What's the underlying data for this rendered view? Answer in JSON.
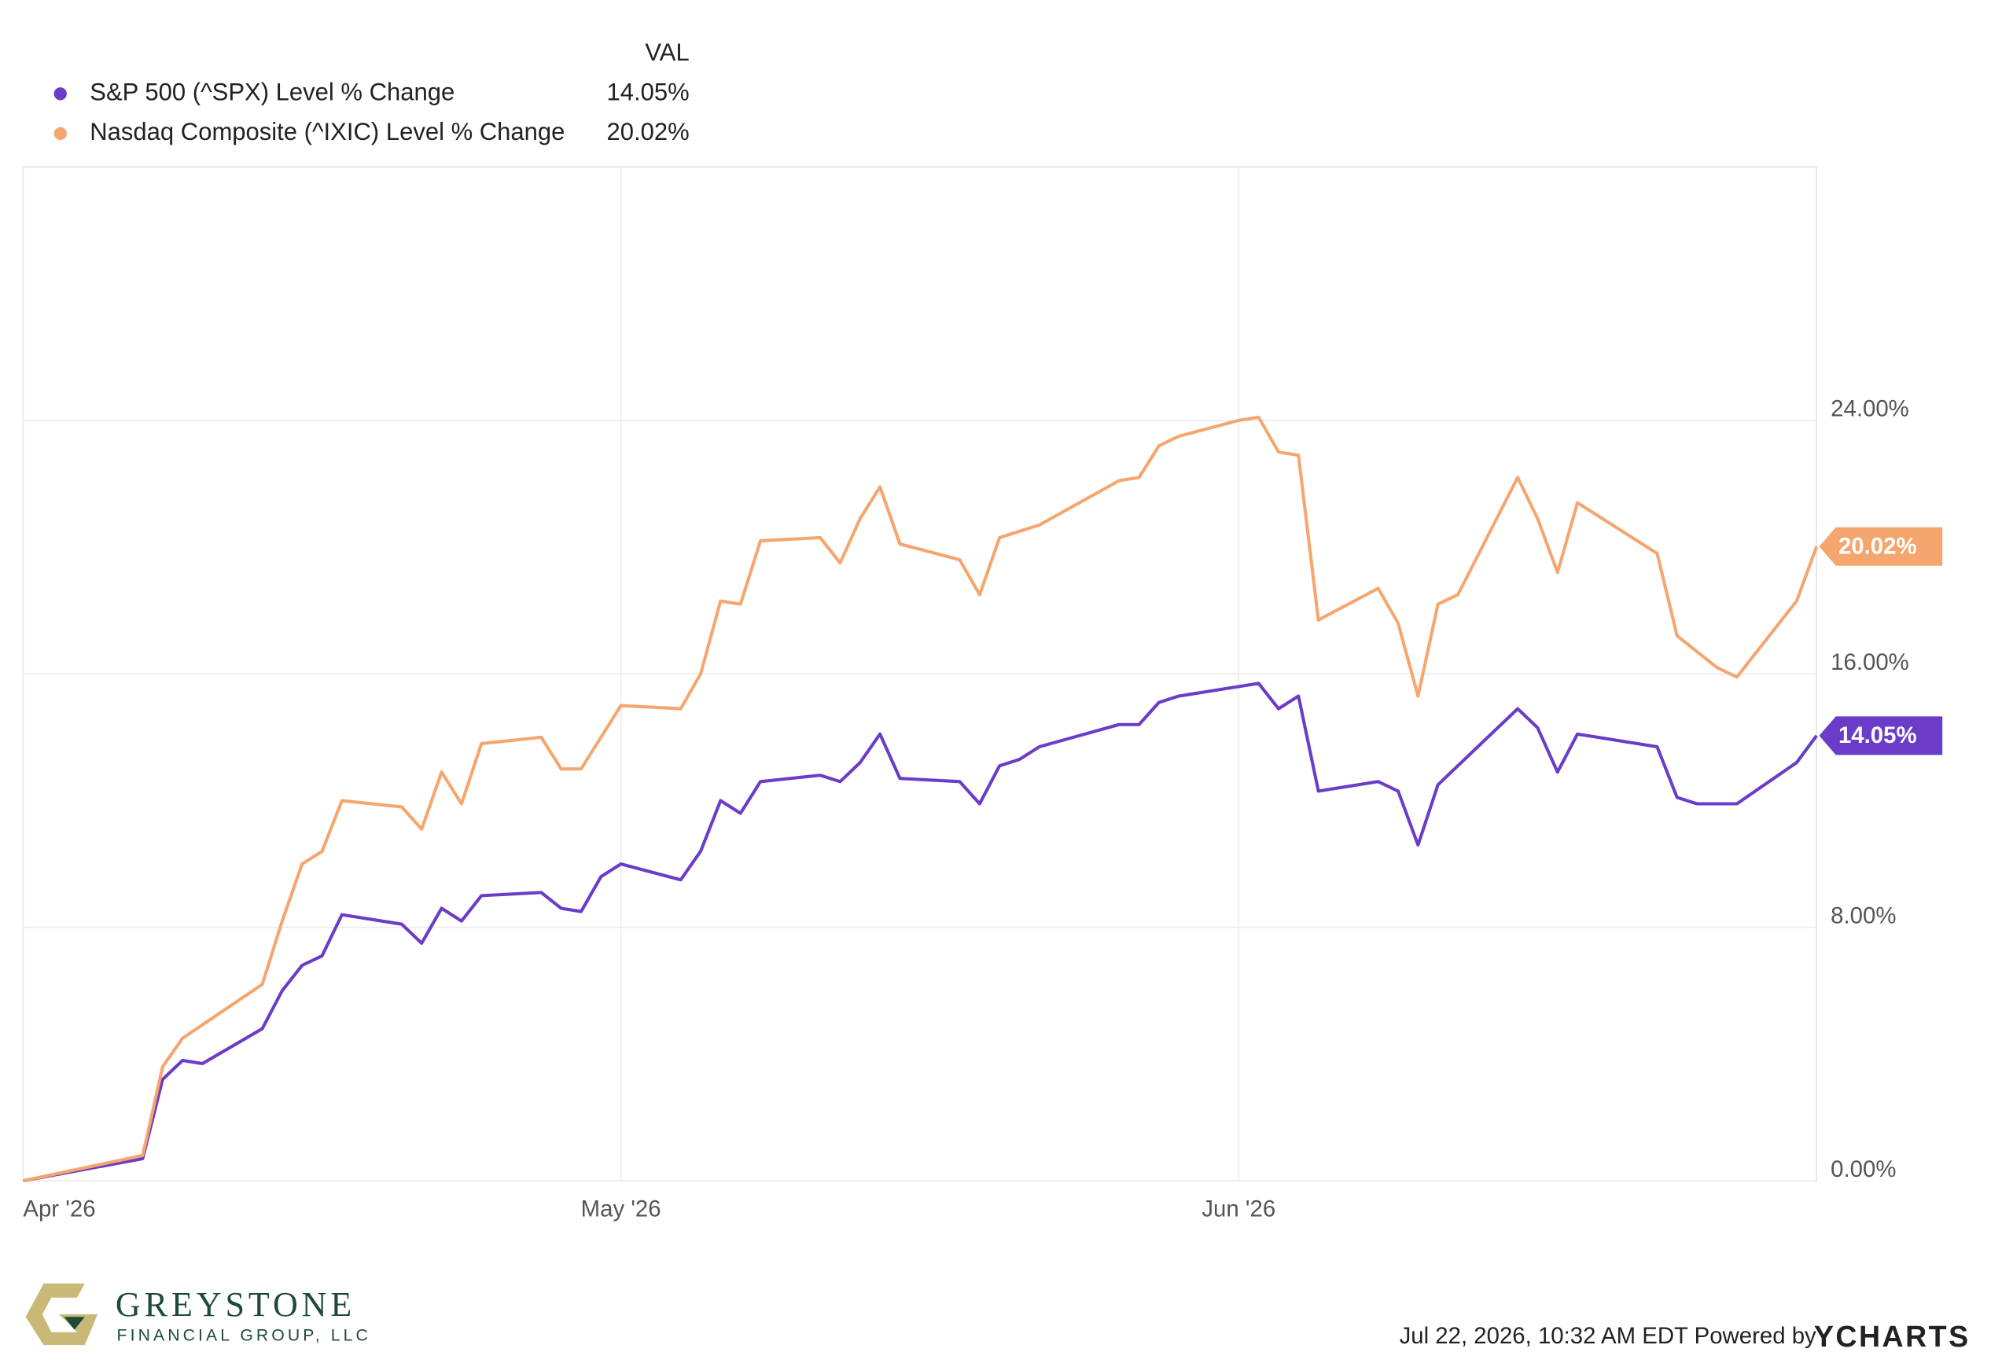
{
  "chart_data": {
    "type": "line",
    "legend_header": "VAL",
    "xlim": [
      0,
      90
    ],
    "xticks": [
      {
        "value": 0,
        "label": "Apr '26"
      },
      {
        "value": 30,
        "label": "May '26"
      },
      {
        "value": 61,
        "label": "Jun '26"
      }
    ],
    "ylim": [
      0,
      32
    ],
    "yticks": [
      {
        "value": 0,
        "label": "0.00%"
      },
      {
        "value": 8,
        "label": "8.00%"
      },
      {
        "value": 16,
        "label": "16.00%"
      },
      {
        "value": 24,
        "label": "24.00%"
      }
    ],
    "grid": true,
    "series": [
      {
        "name": "S&P 500 (^SPX) Level % Change",
        "color": "#6a3cc8",
        "end_label": "14.05%",
        "x": [
          0,
          6,
          7,
          8,
          9,
          12,
          13,
          14,
          15,
          16,
          19,
          20,
          21,
          22,
          23,
          26,
          27,
          28,
          29,
          30,
          33,
          34,
          35,
          36,
          37,
          40,
          41,
          42,
          43,
          44,
          47,
          48,
          49,
          50,
          51,
          55,
          56,
          57,
          58,
          61,
          62,
          63,
          64,
          65,
          68,
          69,
          70,
          71,
          72,
          75,
          76,
          77,
          78,
          82,
          83,
          84,
          85,
          86,
          89,
          90
        ],
        "values": [
          0,
          0.7,
          3.2,
          3.8,
          3.7,
          4.8,
          6.0,
          6.8,
          7.1,
          8.4,
          8.1,
          7.5,
          8.6,
          8.2,
          9.0,
          9.1,
          8.6,
          8.5,
          9.6,
          10.0,
          9.5,
          10.4,
          12.0,
          11.6,
          12.6,
          12.8,
          12.6,
          13.2,
          14.1,
          12.7,
          12.6,
          11.9,
          13.1,
          13.3,
          13.7,
          14.4,
          14.4,
          15.1,
          15.3,
          15.6,
          15.7,
          14.9,
          15.3,
          12.3,
          12.6,
          12.3,
          10.6,
          12.5,
          13.1,
          14.9,
          14.3,
          12.9,
          14.1,
          13.7,
          12.1,
          11.9,
          11.9,
          11.9,
          13.2,
          14.05
        ]
      },
      {
        "name": "Nasdaq Composite (^IXIC) Level % Change",
        "color": "#f5a66f",
        "end_label": "20.02%",
        "x": [
          0,
          6,
          7,
          8,
          12,
          13,
          14,
          15,
          16,
          19,
          20,
          21,
          22,
          23,
          26,
          27,
          28,
          30,
          33,
          34,
          35,
          36,
          37,
          40,
          41,
          42,
          43,
          44,
          47,
          48,
          49,
          50,
          51,
          55,
          56,
          57,
          58,
          61,
          62,
          63,
          64,
          65,
          68,
          69,
          70,
          71,
          72,
          75,
          76,
          77,
          78,
          82,
          83,
          85,
          86,
          89,
          90
        ],
        "values": [
          0,
          0.8,
          3.6,
          4.5,
          6.2,
          8.2,
          10.0,
          10.4,
          12.0,
          11.8,
          11.1,
          12.9,
          11.9,
          13.8,
          14.0,
          13.0,
          13.0,
          15.0,
          14.9,
          16.0,
          18.3,
          18.2,
          20.2,
          20.3,
          19.5,
          20.9,
          21.9,
          20.1,
          19.6,
          18.5,
          20.3,
          20.5,
          20.7,
          22.1,
          22.2,
          23.2,
          23.5,
          24.0,
          24.1,
          23.0,
          22.9,
          17.7,
          18.7,
          17.6,
          15.3,
          18.2,
          18.5,
          22.2,
          20.9,
          19.2,
          21.4,
          19.8,
          17.2,
          16.2,
          15.9,
          18.3,
          20.02
        ]
      }
    ]
  },
  "footer": {
    "timestamp": "Jul 22, 2026, 10:32 AM EDT Powered by",
    "brand": "YCHARTS"
  },
  "logo": {
    "name": "GREYSTONE",
    "subtitle": "FINANCIAL GROUP, LLC"
  }
}
